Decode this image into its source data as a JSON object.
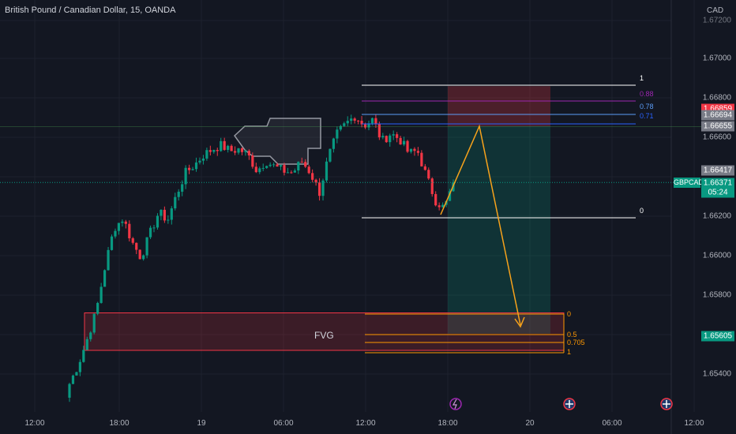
{
  "header": {
    "title": "British Pound / Canadian Dollar, 15, OANDA",
    "currency": "CAD"
  },
  "y_axis": {
    "ticks": [
      "1.67000",
      "1.66800",
      "1.66600",
      "1.66200",
      "1.66000",
      "1.65800",
      "1.65400"
    ],
    "top_partial": "1.67200"
  },
  "x_axis": {
    "ticks": [
      "12:00",
      "18:00",
      "19",
      "06:00",
      "12:00",
      "18:00",
      "20",
      "06:00",
      "12:00"
    ]
  },
  "price_tags": {
    "stop": {
      "value": "1.66859",
      "color": "#f23645"
    },
    "level_a": {
      "value": "1.66694",
      "color": "#787b86"
    },
    "level_b": {
      "value": "1.66655",
      "color": "#787b86"
    },
    "level_c": {
      "value": "1.66417",
      "color": "#787b86"
    },
    "current": {
      "symbol": "GBPCAD",
      "value": "1.66371",
      "countdown": "05:24",
      "color": "#089981"
    },
    "target": {
      "value": "1.65605",
      "color": "#089981"
    }
  },
  "fib_upper": {
    "levels": [
      {
        "label": "1",
        "color": "#ffffff"
      },
      {
        "label": "0.88",
        "color": "#9c27b0"
      },
      {
        "label": "0.78",
        "color": "#5b9cf6"
      },
      {
        "label": "0.71",
        "color": "#2962ff"
      },
      {
        "label": "0",
        "color": "#ffffff"
      }
    ]
  },
  "fib_lower": {
    "levels": [
      {
        "label": "0",
        "color": "#ff9800"
      },
      {
        "label": "0.5",
        "color": "#ff9800"
      },
      {
        "label": "0.705",
        "color": "#ff9800"
      },
      {
        "label": "1",
        "color": "#ff9800"
      }
    ]
  },
  "fvg": {
    "label": "FVG"
  },
  "colors": {
    "up": "#089981",
    "down": "#f23645",
    "background": "#131722",
    "arrow": "#f7a21b"
  },
  "chart_data": {
    "type": "candlestick",
    "symbol": "GBPCAD",
    "timeframe": "15",
    "ylim": [
      1.653,
      1.6722
    ],
    "x_ticks": [
      "12:00",
      "18:00",
      "19",
      "06:00",
      "12:00",
      "18:00",
      "20",
      "06:00",
      "12:00"
    ],
    "close_path": [
      1.6535,
      1.6545,
      1.6558,
      1.6572,
      1.6595,
      1.6614,
      1.6619,
      1.6607,
      1.6599,
      1.6611,
      1.6622,
      1.6618,
      1.6631,
      1.6642,
      1.6646,
      1.6651,
      1.6654,
      1.6656,
      1.6653,
      1.6654,
      1.6651,
      1.6643,
      1.6648,
      1.6645,
      1.6643,
      1.6642,
      1.6648,
      1.6642,
      1.6632,
      1.665,
      1.6662,
      1.6667,
      1.6671,
      1.6666,
      1.6669,
      1.6658,
      1.6662,
      1.6659,
      1.6652,
      1.6653,
      1.664,
      1.6628,
      1.6624,
      1.6637
    ],
    "trade_setup": {
      "entry": 1.66655,
      "stop": 1.66859,
      "target": 1.65605
    },
    "fvg_zone": [
      1.6552,
      1.6571
    ]
  }
}
